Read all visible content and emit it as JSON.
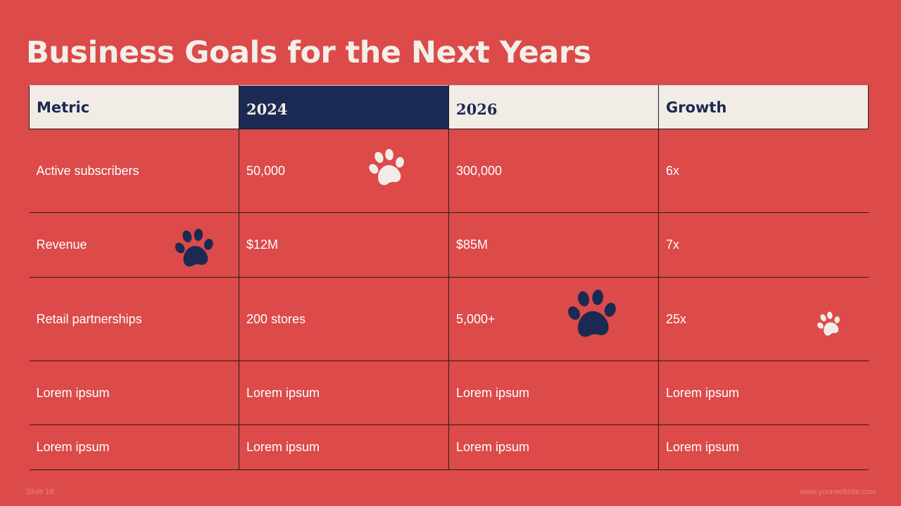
{
  "slide": {
    "title": "Business Goals for the Next Years",
    "colors": {
      "background": "#dc4a4a",
      "navy": "#1b2a52",
      "cream": "#f1ede6"
    }
  },
  "table": {
    "headers": [
      "Metric",
      "2024",
      "2026",
      "Growth"
    ],
    "rows": [
      [
        "Active subscribers",
        "50,000",
        "300,000",
        "6x"
      ],
      [
        "Revenue",
        "$12M",
        "$85M",
        "7x"
      ],
      [
        "Retail partnerships",
        "200 stores",
        "5,000+",
        "25x"
      ],
      [
        "Lorem ipsum",
        "Lorem ipsum",
        "Lorem ipsum",
        "Lorem ipsum"
      ],
      [
        "Lorem ipsum",
        "Lorem ipsum",
        "Lorem ipsum",
        "Lorem ipsum"
      ]
    ]
  },
  "decorations": {
    "icon": "paw-print-icon"
  },
  "footer": {
    "slide_number": "Slide 16",
    "website": "www.yourwebsite.com"
  }
}
